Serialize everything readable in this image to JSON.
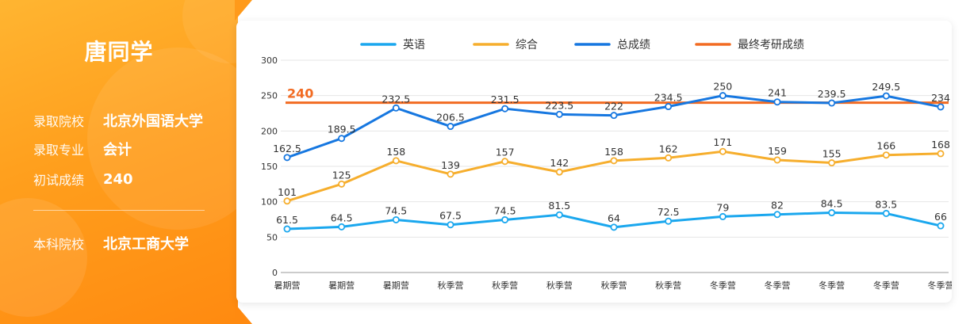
{
  "student": {
    "name": "唐同学",
    "rows": [
      {
        "label": "录取院校",
        "value": "北京外国语大学"
      },
      {
        "label": "录取专业",
        "value": "会计"
      },
      {
        "label": "初试成绩",
        "value": "240"
      }
    ],
    "undergrad": {
      "label": "本科院校",
      "value": "北京工商大学"
    }
  },
  "colors": {
    "english": "#1aa7ee",
    "comprehensive": "#f6ae2d",
    "total": "#1677e0",
    "final": "#f26b22"
  },
  "chart_data": {
    "type": "line",
    "categories": [
      "暑期营",
      "暑期营",
      "暑期营",
      "秋季营",
      "秋季营",
      "秋季营",
      "秋季营",
      "秋季营",
      "冬季营",
      "冬季营",
      "冬季营",
      "冬季营",
      "冬季营"
    ],
    "ylim": [
      0,
      300
    ],
    "yticks": [
      0,
      50,
      100,
      150,
      200,
      250,
      300
    ],
    "legend_position": "top",
    "series": [
      {
        "name": "英语",
        "color": "#1aa7ee",
        "values": [
          61.5,
          64.5,
          74.5,
          67.5,
          74.5,
          81.5,
          64,
          72.5,
          79,
          82,
          84.5,
          83.5,
          66
        ]
      },
      {
        "name": "综合",
        "color": "#f6ae2d",
        "values": [
          101,
          125,
          158,
          139,
          157,
          142,
          158,
          162,
          171,
          159,
          155,
          166,
          168
        ]
      },
      {
        "name": "总成绩",
        "color": "#1677e0",
        "values": [
          162.5,
          189.5,
          232.5,
          206.5,
          231.5,
          223.5,
          222,
          234.5,
          250,
          241,
          239.5,
          249.5,
          234
        ]
      },
      {
        "name": "最终考研成绩",
        "color": "#f26b22",
        "value": 240,
        "label": "240"
      }
    ]
  }
}
